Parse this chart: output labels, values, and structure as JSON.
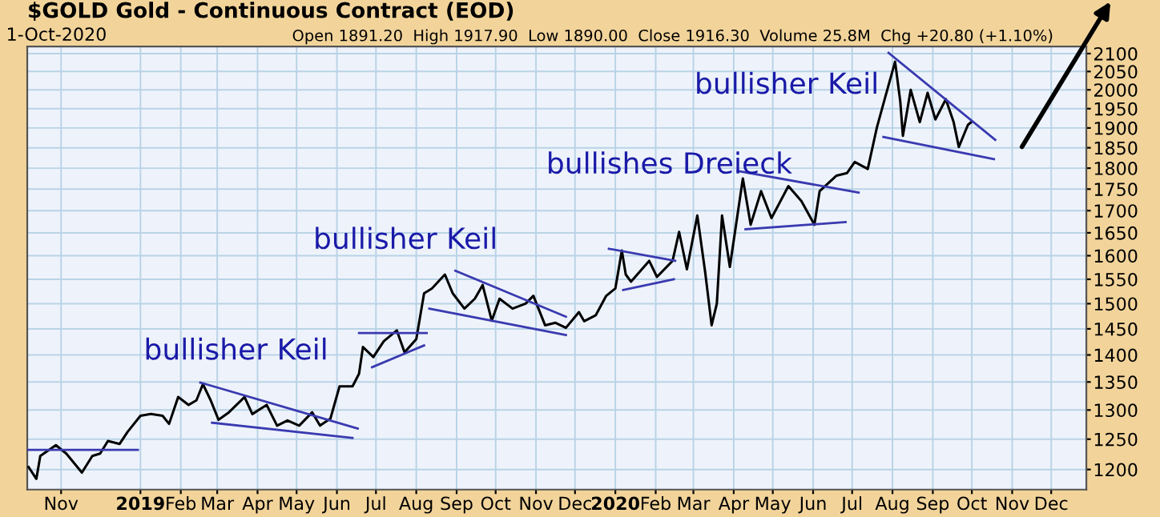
{
  "chart_data": {
    "type": "line",
    "title": "$GOLD Gold - Continuous Contract (EOD)",
    "subtitle": "1-Oct-2020",
    "annotations": [
      "Open 1891.20  High 1917.90  Low 1890.00  Close 1916.30  Volume 25.8M  Chg +20.80 (+1.10%)",
      "bullisher Keil",
      "bullisher Keil",
      "bullishes Dreieck",
      "bullisher Keil"
    ],
    "log": true,
    "grid": true,
    "marker": "none",
    "line_style": "solid",
    "xlim": [
      "2018-10-06",
      "2020-12-28"
    ],
    "xticks": [
      {
        "value": "2018-11-01",
        "label": "Nov"
      },
      {
        "value": "2019-01-01",
        "label": "2019"
      },
      {
        "value": "2019-02-01",
        "label": "Feb"
      },
      {
        "value": "2019-03-01",
        "label": "Mar"
      },
      {
        "value": "2019-04-01",
        "label": "Apr"
      },
      {
        "value": "2019-05-01",
        "label": "May"
      },
      {
        "value": "2019-06-01",
        "label": "Jun"
      },
      {
        "value": "2019-07-01",
        "label": "Jul"
      },
      {
        "value": "2019-08-01",
        "label": "Aug"
      },
      {
        "value": "2019-09-01",
        "label": "Sep"
      },
      {
        "value": "2019-10-01",
        "label": "Oct"
      },
      {
        "value": "2019-11-01",
        "label": "Nov"
      },
      {
        "value": "2019-12-01",
        "label": "Dec"
      },
      {
        "value": "2020-01-01",
        "label": "2020"
      },
      {
        "value": "2020-02-01",
        "label": "Feb"
      },
      {
        "value": "2020-03-01",
        "label": "Mar"
      },
      {
        "value": "2020-04-01",
        "label": "Apr"
      },
      {
        "value": "2020-05-01",
        "label": "May"
      },
      {
        "value": "2020-06-01",
        "label": "Jun"
      },
      {
        "value": "2020-07-01",
        "label": "Jul"
      },
      {
        "value": "2020-08-01",
        "label": "Aug"
      },
      {
        "value": "2020-09-01",
        "label": "Sep"
      },
      {
        "value": "2020-10-01",
        "label": "Oct"
      },
      {
        "value": "2020-11-01",
        "label": "Nov"
      },
      {
        "value": "2020-12-01",
        "label": "Dec"
      }
    ],
    "ylim": [
      1168,
      2120
    ],
    "yticks": [
      1200,
      1250,
      1300,
      1350,
      1400,
      1450,
      1500,
      1550,
      1600,
      1650,
      1700,
      1750,
      1800,
      1850,
      1900,
      1950,
      2000,
      2050,
      2100
    ],
    "series": [
      {
        "color": "#000000",
        "x": [
          "2018-10-07",
          "2018-10-13",
          "2018-10-16",
          "2018-10-28",
          "2018-11-05",
          "2018-11-17",
          "2018-11-25",
          "2018-12-01",
          "2018-12-07",
          "2018-12-16",
          "2018-12-22",
          "2019-01-01",
          "2019-01-09",
          "2019-01-18",
          "2019-01-23",
          "2019-01-30",
          "2019-02-07",
          "2019-02-13",
          "2019-02-18",
          "2019-02-24",
          "2019-03-02",
          "2019-03-10",
          "2019-03-22",
          "2019-03-28",
          "2019-04-08",
          "2019-04-16",
          "2019-04-24",
          "2019-05-03",
          "2019-05-13",
          "2019-05-19",
          "2019-05-27",
          "2019-06-03",
          "2019-06-13",
          "2019-06-18",
          "2019-06-21",
          "2019-06-29",
          "2019-07-07",
          "2019-07-17",
          "2019-07-23",
          "2019-08-01",
          "2019-08-07",
          "2019-08-13",
          "2019-08-23",
          "2019-08-29",
          "2019-09-07",
          "2019-09-15",
          "2019-09-21",
          "2019-09-28",
          "2019-10-04",
          "2019-10-14",
          "2019-10-24",
          "2019-10-30",
          "2019-11-08",
          "2019-11-16",
          "2019-11-24",
          "2019-12-04",
          "2019-12-08",
          "2019-12-17",
          "2019-12-25",
          "2020-01-01",
          "2020-01-06",
          "2020-01-09",
          "2020-01-13",
          "2020-01-27",
          "2020-02-02",
          "2020-02-14",
          "2020-02-19",
          "2020-02-25",
          "2020-03-04",
          "2020-03-10",
          "2020-03-15",
          "2020-03-19",
          "2020-03-23",
          "2020-03-29",
          "2020-04-08",
          "2020-04-14",
          "2020-04-22",
          "2020-04-30",
          "2020-05-13",
          "2020-05-23",
          "2020-06-02",
          "2020-06-06",
          "2020-06-19",
          "2020-06-27",
          "2020-07-03",
          "2020-07-13",
          "2020-07-20",
          "2020-07-26",
          "2020-08-03",
          "2020-08-07",
          "2020-08-09",
          "2020-08-15",
          "2020-08-22",
          "2020-08-28",
          "2020-09-03",
          "2020-09-11",
          "2020-09-17",
          "2020-09-21",
          "2020-09-28",
          "2020-10-01"
        ],
        "values": [
          1204,
          1185,
          1222,
          1240,
          1226,
          1195,
          1222,
          1226,
          1247,
          1242,
          1262,
          1290,
          1293,
          1290,
          1276,
          1323,
          1309,
          1317,
          1346,
          1317,
          1283,
          1296,
          1323,
          1293,
          1309,
          1273,
          1282,
          1273,
          1296,
          1273,
          1285,
          1342,
          1342,
          1365,
          1415,
          1396,
          1426,
          1447,
          1405,
          1430,
          1521,
          1531,
          1560,
          1521,
          1490,
          1510,
          1538,
          1466,
          1510,
          1490,
          1500,
          1516,
          1457,
          1462,
          1452,
          1483,
          1465,
          1477,
          1516,
          1531,
          1611,
          1560,
          1545,
          1589,
          1555,
          1589,
          1652,
          1571,
          1689,
          1566,
          1457,
          1500,
          1689,
          1576,
          1775,
          1668,
          1745,
          1683,
          1757,
          1722,
          1668,
          1745,
          1782,
          1788,
          1815,
          1798,
          1901,
          1975,
          2077,
          1969,
          1880,
          2000,
          1915,
          1992,
          1922,
          1975,
          1915,
          1852,
          1908,
          1916.3
        ]
      },
      {
        "type": "line",
        "color": "#3a3ab0",
        "x": [
          "2018-10-06",
          "2018-12-30"
        ],
        "values": [
          1232,
          1232
        ]
      },
      {
        "type": "line",
        "color": "#3a3ab0",
        "x": [
          "2019-02-16",
          "2019-06-17"
        ],
        "values": [
          1349,
          1268
        ]
      },
      {
        "type": "line",
        "color": "#3a3ab0",
        "x": [
          "2019-02-25",
          "2019-06-13"
        ],
        "values": [
          1278,
          1252
        ]
      },
      {
        "type": "line",
        "color": "#3a3ab0",
        "x": [
          "2019-06-18",
          "2019-08-09"
        ],
        "values": [
          1442,
          1442
        ]
      },
      {
        "type": "line",
        "color": "#3a3ab0",
        "x": [
          "2019-06-28",
          "2019-08-07"
        ],
        "values": [
          1377,
          1418
        ]
      },
      {
        "type": "line",
        "color": "#3a3ab0",
        "x": [
          "2019-08-31",
          "2019-11-24"
        ],
        "values": [
          1568,
          1474
        ]
      },
      {
        "type": "line",
        "color": "#3a3ab0",
        "x": [
          "2019-08-11",
          "2019-11-24"
        ],
        "values": [
          1490,
          1438
        ]
      },
      {
        "type": "line",
        "color": "#3a3ab0",
        "x": [
          "2019-12-27",
          "2020-02-16"
        ],
        "values": [
          1615,
          1589
        ]
      },
      {
        "type": "line",
        "color": "#3a3ab0",
        "x": [
          "2020-01-07",
          "2020-02-15"
        ],
        "values": [
          1528,
          1550
        ]
      },
      {
        "type": "line",
        "color": "#3a3ab0",
        "x": [
          "2020-04-04",
          "2020-07-06"
        ],
        "values": [
          1793,
          1742
        ]
      },
      {
        "type": "line",
        "color": "#3a3ab0",
        "x": [
          "2020-04-10",
          "2020-06-26"
        ],
        "values": [
          1658,
          1674
        ]
      },
      {
        "type": "line",
        "color": "#3a3ab0",
        "x": [
          "2020-07-29",
          "2020-10-19"
        ],
        "values": [
          2102,
          1870
        ]
      },
      {
        "type": "line",
        "color": "#3a3ab0",
        "x": [
          "2020-07-25",
          "2020-10-18"
        ],
        "values": [
          1877,
          1822
        ]
      }
    ]
  }
}
